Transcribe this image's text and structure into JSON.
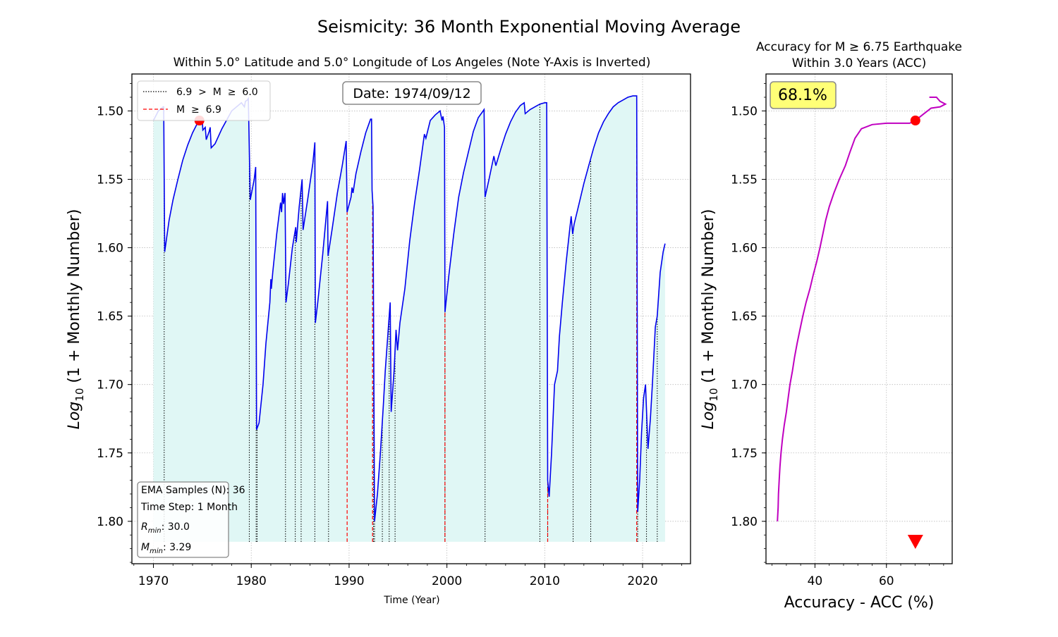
{
  "suptitle": "Seismicity: 36 Month Exponential Moving Average",
  "chart_data": [
    {
      "type": "line",
      "title": "Within 5.0° Latitude and 5.0° Longitude of Los Angeles (Note Y-Axis is Inverted)",
      "xlabel": "Time (Year)",
      "ylabel": "Log10 (1 + Monthly Number)",
      "ylabel_main": "Log",
      "ylabel_sub": "10",
      "ylabel_rest": " (1 + Monthly Number)",
      "xlim": [
        1967.8,
        2024.9
      ],
      "ylim": [
        1.831,
        1.473
      ],
      "y_inverted": true,
      "grid": true,
      "xticks": [
        1970,
        1980,
        1990,
        2000,
        2010,
        2020
      ],
      "yticks": [
        1.5,
        1.55,
        1.6,
        1.65,
        1.7,
        1.75,
        1.8
      ],
      "ytick_labels": [
        "1.50",
        "1.55",
        "1.60",
        "1.65",
        "1.70",
        "1.75",
        "1.80"
      ],
      "date_box": "Date: 1974/09/12",
      "current_point": {
        "x": 1974.7,
        "y": 1.507,
        "color": "#ff0000"
      },
      "legend": {
        "placement": "top-left",
        "entries": [
          {
            "label": "6.9  >  M  ≥  6.0",
            "style": "dotted",
            "color": "#000000"
          },
          {
            "label": "M  ≥  6.9",
            "style": "dashed",
            "color": "#ff0000"
          }
        ]
      },
      "info_box": {
        "placement": "bottom-left",
        "line1": "EMA Samples (N): 36",
        "line2": "Time Step: 1 Month",
        "line3_sym": "R",
        "line3_sub": "min",
        "line3_val": ": 30.0",
        "line4_sym": "M",
        "line4_sub": "min",
        "line4_val": ": 3.29"
      },
      "fill_color": "#e0f7f5",
      "line_color": "#0000ee",
      "series": [
        {
          "points": [
            [
              1970.0,
              1.507
            ],
            [
              1970.5,
              1.5
            ],
            [
              1971.0,
              1.497
            ],
            [
              1971.05,
              1.497
            ],
            [
              1971.15,
              1.603
            ],
            [
              1971.6,
              1.58
            ],
            [
              1972.0,
              1.565
            ],
            [
              1972.5,
              1.55
            ],
            [
              1973.0,
              1.536
            ],
            [
              1973.5,
              1.525
            ],
            [
              1974.0,
              1.516
            ],
            [
              1974.5,
              1.509
            ],
            [
              1974.9,
              1.507
            ],
            [
              1975.0,
              1.508
            ],
            [
              1975.05,
              1.514
            ],
            [
              1975.3,
              1.512
            ],
            [
              1975.4,
              1.521
            ],
            [
              1975.7,
              1.515
            ],
            [
              1975.8,
              1.512
            ],
            [
              1975.9,
              1.527
            ],
            [
              1976.3,
              1.524
            ],
            [
              1977.0,
              1.513
            ],
            [
              1978.0,
              1.5
            ],
            [
              1979.0,
              1.494
            ],
            [
              1979.3,
              1.497
            ],
            [
              1979.4,
              1.493
            ],
            [
              1979.6,
              1.492
            ],
            [
              1979.7,
              1.491
            ],
            [
              1979.9,
              1.565
            ],
            [
              1980.3,
              1.55
            ],
            [
              1980.45,
              1.541
            ],
            [
              1980.55,
              1.733
            ],
            [
              1980.8,
              1.728
            ],
            [
              1981.2,
              1.7
            ],
            [
              1981.5,
              1.67
            ],
            [
              1981.9,
              1.64
            ],
            [
              1982.0,
              1.623
            ],
            [
              1982.05,
              1.63
            ],
            [
              1982.2,
              1.618
            ],
            [
              1982.6,
              1.59
            ],
            [
              1983.0,
              1.567
            ],
            [
              1983.1,
              1.574
            ],
            [
              1983.2,
              1.56
            ],
            [
              1983.3,
              1.568
            ],
            [
              1983.45,
              1.56
            ],
            [
              1983.55,
              1.64
            ],
            [
              1983.8,
              1.626
            ],
            [
              1984.2,
              1.6
            ],
            [
              1984.55,
              1.585
            ],
            [
              1984.6,
              1.596
            ],
            [
              1984.9,
              1.57
            ],
            [
              1985.2,
              1.55
            ],
            [
              1985.3,
              1.587
            ],
            [
              1985.8,
              1.563
            ],
            [
              1986.3,
              1.538
            ],
            [
              1986.5,
              1.523
            ],
            [
              1986.55,
              1.655
            ],
            [
              1986.8,
              1.64
            ],
            [
              1987.3,
              1.605
            ],
            [
              1987.8,
              1.566
            ],
            [
              1987.85,
              1.606
            ],
            [
              1988.3,
              1.585
            ],
            [
              1988.8,
              1.56
            ],
            [
              1989.3,
              1.54
            ],
            [
              1989.7,
              1.522
            ],
            [
              1989.8,
              1.574
            ],
            [
              1990.2,
              1.563
            ],
            [
              1990.3,
              1.556
            ],
            [
              1990.4,
              1.56
            ],
            [
              1990.7,
              1.546
            ],
            [
              1991.2,
              1.53
            ],
            [
              1991.7,
              1.516
            ],
            [
              1992.2,
              1.506
            ],
            [
              1992.3,
              1.506
            ],
            [
              1992.35,
              1.558
            ],
            [
              1992.45,
              1.57
            ],
            [
              1992.6,
              1.8
            ],
            [
              1992.9,
              1.78
            ],
            [
              1993.2,
              1.75
            ],
            [
              1993.5,
              1.715
            ],
            [
              1993.7,
              1.69
            ],
            [
              1994.0,
              1.66
            ],
            [
              1994.2,
              1.64
            ],
            [
              1994.3,
              1.72
            ],
            [
              1994.6,
              1.69
            ],
            [
              1994.8,
              1.66
            ],
            [
              1994.95,
              1.675
            ],
            [
              1995.2,
              1.655
            ],
            [
              1995.7,
              1.63
            ],
            [
              1996.2,
              1.595
            ],
            [
              1996.7,
              1.567
            ],
            [
              1997.2,
              1.543
            ],
            [
              1997.7,
              1.517
            ],
            [
              1997.85,
              1.52
            ],
            [
              1998.3,
              1.507
            ],
            [
              1998.8,
              1.503
            ],
            [
              1999.3,
              1.5
            ],
            [
              1999.5,
              1.507
            ],
            [
              1999.6,
              1.504
            ],
            [
              1999.75,
              1.512
            ],
            [
              1999.8,
              1.647
            ],
            [
              2000.2,
              1.62
            ],
            [
              2000.7,
              1.59
            ],
            [
              2001.2,
              1.563
            ],
            [
              2001.7,
              1.545
            ],
            [
              2002.2,
              1.53
            ],
            [
              2002.7,
              1.515
            ],
            [
              2003.2,
              1.505
            ],
            [
              2003.8,
              1.499
            ],
            [
              2003.9,
              1.563
            ],
            [
              2004.3,
              1.55
            ],
            [
              2004.8,
              1.533
            ],
            [
              2005.0,
              1.54
            ],
            [
              2005.5,
              1.528
            ],
            [
              2006.0,
              1.517
            ],
            [
              2006.5,
              1.508
            ],
            [
              2007.0,
              1.501
            ],
            [
              2007.5,
              1.496
            ],
            [
              2007.9,
              1.494
            ],
            [
              2008.0,
              1.502
            ],
            [
              2008.5,
              1.499
            ],
            [
              2009.0,
              1.497
            ],
            [
              2009.5,
              1.495
            ],
            [
              2010.0,
              1.494
            ],
            [
              2010.2,
              1.494
            ],
            [
              2010.3,
              1.77
            ],
            [
              2010.45,
              1.782
            ],
            [
              2010.7,
              1.75
            ],
            [
              2011.0,
              1.7
            ],
            [
              2011.3,
              1.69
            ],
            [
              2011.5,
              1.665
            ],
            [
              2011.8,
              1.64
            ],
            [
              2012.2,
              1.61
            ],
            [
              2012.5,
              1.59
            ],
            [
              2012.7,
              1.577
            ],
            [
              2012.85,
              1.59
            ],
            [
              2013.0,
              1.583
            ],
            [
              2013.5,
              1.568
            ],
            [
              2014.0,
              1.553
            ],
            [
              2014.5,
              1.54
            ],
            [
              2015.0,
              1.527
            ],
            [
              2015.5,
              1.516
            ],
            [
              2016.0,
              1.508
            ],
            [
              2016.5,
              1.502
            ],
            [
              2017.0,
              1.497
            ],
            [
              2017.5,
              1.494
            ],
            [
              2018.0,
              1.492
            ],
            [
              2018.5,
              1.49
            ],
            [
              2019.0,
              1.489
            ],
            [
              2019.4,
              1.489
            ],
            [
              2019.5,
              1.793
            ],
            [
              2019.7,
              1.77
            ],
            [
              2019.9,
              1.735
            ],
            [
              2020.1,
              1.71
            ],
            [
              2020.3,
              1.7
            ],
            [
              2020.55,
              1.747
            ],
            [
              2020.8,
              1.725
            ],
            [
              2021.0,
              1.7
            ],
            [
              2021.3,
              1.658
            ],
            [
              2021.5,
              1.65
            ],
            [
              2021.8,
              1.618
            ],
            [
              2022.1,
              1.603
            ],
            [
              2022.3,
              1.597
            ]
          ]
        }
      ],
      "events_moderate": [
        1971.1,
        1979.8,
        1980.5,
        1980.6,
        1983.5,
        1984.5,
        1985.1,
        1986.5,
        1987.9,
        1992.5,
        1992.6,
        1993.4,
        1994.1,
        1994.7,
        1999.8,
        2003.9,
        2009.5,
        2010.3,
        2012.9,
        2014.7,
        2019.5,
        2020.4,
        2021.5
      ],
      "events_large": [
        1989.8,
        1992.4,
        1999.8,
        2010.3,
        2019.4
      ]
    },
    {
      "type": "line",
      "title_line1": "Accuracy for M ≥ 6.75 Earthquake",
      "title_line2": "Within 3.0 Years (ACC)",
      "xlabel": "Accuracy - ACC (%)",
      "ylabel": "Log10 (1 + Monthly Number)",
      "ylabel_main": "Log",
      "ylabel_sub": "10",
      "ylabel_rest": " (1 + Monthly Number)",
      "xlim": [
        26.3,
        78.4
      ],
      "ylim": [
        1.831,
        1.473
      ],
      "y_inverted": true,
      "grid": true,
      "xticks": [
        40,
        60
      ],
      "yticks": [
        1.5,
        1.55,
        1.6,
        1.65,
        1.7,
        1.75,
        1.8
      ],
      "ytick_labels": [
        "1.50",
        "1.55",
        "1.60",
        "1.65",
        "1.70",
        "1.75",
        "1.80"
      ],
      "accuracy_box": "68.1%",
      "line_color": "#c000c0",
      "current_point": {
        "x": 68.1,
        "y": 1.507,
        "color": "#ff0000"
      },
      "marker_triangle": {
        "x": 68.1,
        "y": 1.815,
        "color": "#ff0000"
      },
      "series": [
        {
          "points": [
            [
              29.5,
              1.8
            ],
            [
              29.7,
              1.79
            ],
            [
              29.8,
              1.78
            ],
            [
              30.0,
              1.77
            ],
            [
              30.2,
              1.76
            ],
            [
              30.5,
              1.75
            ],
            [
              30.9,
              1.74
            ],
            [
              31.4,
              1.73
            ],
            [
              32.0,
              1.72
            ],
            [
              32.5,
              1.71
            ],
            [
              33.0,
              1.7
            ],
            [
              33.7,
              1.69
            ],
            [
              34.3,
              1.68
            ],
            [
              35.0,
              1.67
            ],
            [
              35.8,
              1.66
            ],
            [
              36.6,
              1.65
            ],
            [
              37.5,
              1.64
            ],
            [
              38.6,
              1.63
            ],
            [
              39.5,
              1.62
            ],
            [
              40.5,
              1.61
            ],
            [
              41.4,
              1.6
            ],
            [
              42.2,
              1.59
            ],
            [
              43.0,
              1.58
            ],
            [
              44.0,
              1.57
            ],
            [
              45.3,
              1.56
            ],
            [
              46.8,
              1.55
            ],
            [
              48.5,
              1.54
            ],
            [
              49.8,
              1.53
            ],
            [
              51.2,
              1.52
            ],
            [
              53.0,
              1.513
            ],
            [
              56.0,
              1.51
            ],
            [
              60.0,
              1.509
            ],
            [
              64.0,
              1.509
            ],
            [
              66.5,
              1.509
            ],
            [
              68.1,
              1.507
            ],
            [
              70.5,
              1.502
            ],
            [
              72.5,
              1.498
            ],
            [
              75.0,
              1.497
            ],
            [
              76.5,
              1.495
            ],
            [
              75.0,
              1.493
            ],
            [
              74.0,
              1.49
            ],
            [
              72.0,
              1.49
            ]
          ]
        }
      ]
    }
  ]
}
